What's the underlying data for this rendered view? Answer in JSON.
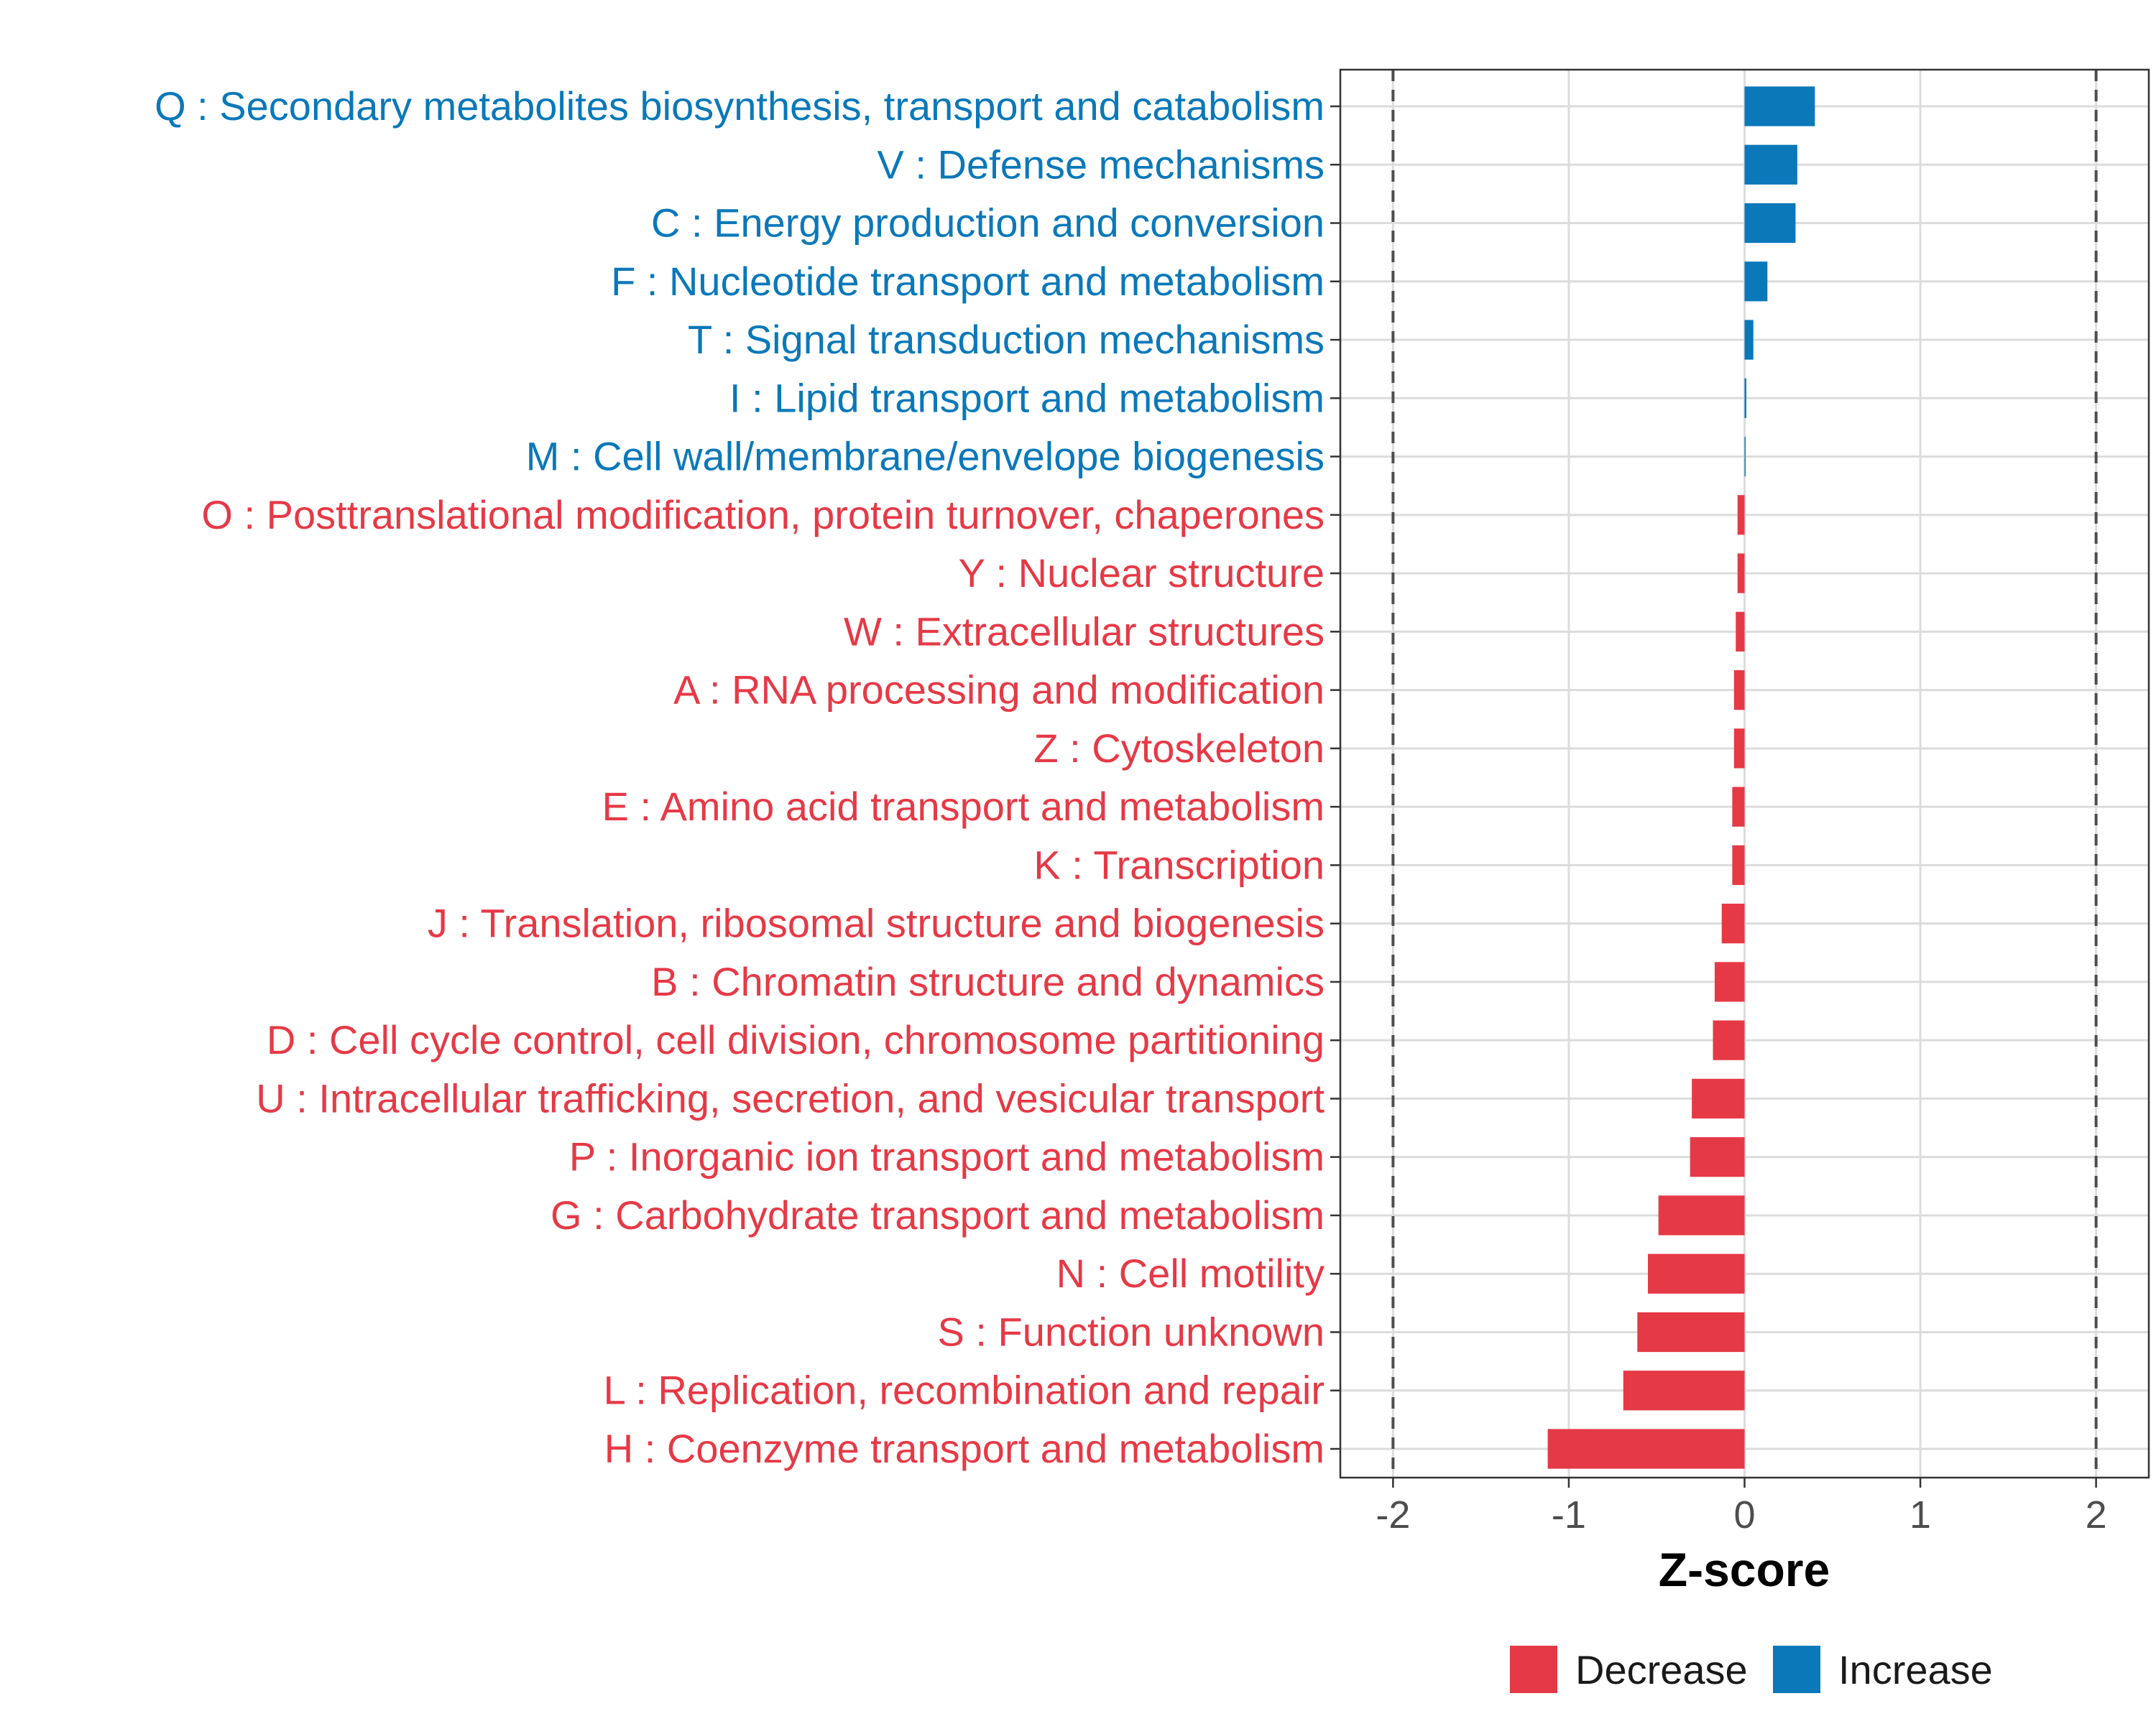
{
  "chart_data": {
    "type": "bar",
    "orientation": "horizontal",
    "xlabel": "Z-score",
    "xlim": [
      -2.3,
      2.3
    ],
    "xticks": [
      -2,
      -1,
      0,
      1,
      2
    ],
    "xtick_labels": [
      "-2",
      "-1",
      "0",
      "1",
      "2"
    ],
    "reference_lines": [
      -2,
      2
    ],
    "grid": true,
    "legend_position": "bottom",
    "colors": {
      "Decrease": "#E63946",
      "Increase": "#0A78B9"
    },
    "categories": [
      "Q : Secondary metabolites biosynthesis, transport and catabolism",
      "V : Defense mechanisms",
      "C : Energy production and conversion",
      "F : Nucleotide transport and metabolism",
      "T : Signal transduction mechanisms",
      "I : Lipid transport and metabolism",
      "M : Cell wall/membrane/envelope biogenesis",
      "O : Posttranslational modification, protein turnover, chaperones",
      "Y : Nuclear structure",
      "W : Extracellular structures",
      "A : RNA processing and modification",
      "Z : Cytoskeleton",
      "E : Amino acid transport and metabolism",
      "K : Transcription",
      "J : Translation, ribosomal structure and biogenesis",
      "B : Chromatin structure and dynamics",
      "D : Cell cycle control, cell division, chromosome partitioning",
      "U : Intracellular trafficking, secretion, and vesicular transport",
      "P : Inorganic ion transport and metabolism",
      "G : Carbohydrate transport and metabolism",
      "N : Cell motility",
      "S : Function unknown",
      "L : Replication, recombination and repair",
      "H : Coenzyme transport and metabolism"
    ],
    "values": [
      0.4,
      0.3,
      0.29,
      0.13,
      0.05,
      0.01,
      0.005,
      -0.04,
      -0.04,
      -0.05,
      -0.06,
      -0.06,
      -0.07,
      -0.07,
      -0.13,
      -0.17,
      -0.18,
      -0.3,
      -0.31,
      -0.49,
      -0.55,
      -0.61,
      -0.69,
      -1.12
    ],
    "groups": [
      "Increase",
      "Increase",
      "Increase",
      "Increase",
      "Increase",
      "Increase",
      "Increase",
      "Decrease",
      "Decrease",
      "Decrease",
      "Decrease",
      "Decrease",
      "Decrease",
      "Decrease",
      "Decrease",
      "Decrease",
      "Decrease",
      "Decrease",
      "Decrease",
      "Decrease",
      "Decrease",
      "Decrease",
      "Decrease",
      "Decrease"
    ],
    "legend": [
      "Decrease",
      "Increase"
    ]
  }
}
